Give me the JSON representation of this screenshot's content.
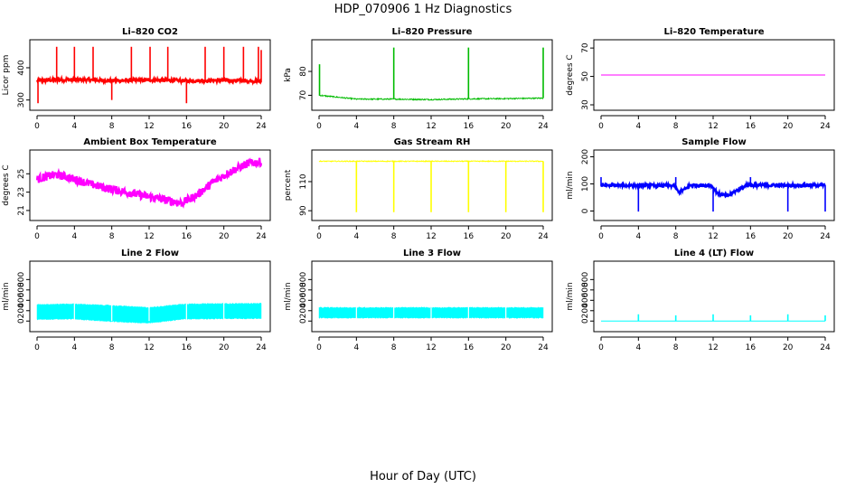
{
  "figure": {
    "title": "HDP_070906  1 Hz Diagnostics",
    "xlabel": "Hour of Day (UTC)"
  },
  "chart_data": [
    {
      "type": "line",
      "title": "Li–820 CO2",
      "ylabel": "Licor ppm",
      "color": "#ff0000",
      "xlim": [
        0,
        24
      ],
      "xticks": [
        0,
        4,
        8,
        12,
        16,
        20,
        24
      ],
      "ylim": [
        285,
        470
      ],
      "yticks": [
        300,
        400
      ],
      "base": [
        [
          0,
          360
        ],
        [
          2,
          362
        ],
        [
          4,
          363
        ],
        [
          6,
          362
        ],
        [
          8,
          360
        ],
        [
          10,
          361
        ],
        [
          12,
          362
        ],
        [
          14,
          361
        ],
        [
          16,
          360
        ],
        [
          18,
          360
        ],
        [
          20,
          361
        ],
        [
          22,
          360
        ],
        [
          24,
          358
        ]
      ],
      "noise": 5,
      "spikes": [
        {
          "x": 0.1,
          "y": 290
        },
        {
          "x": 2.1,
          "y": 465
        },
        {
          "x": 4,
          "y": 465
        },
        {
          "x": 6,
          "y": 465
        },
        {
          "x": 8,
          "y": 300
        },
        {
          "x": 10.1,
          "y": 465
        },
        {
          "x": 12.1,
          "y": 465
        },
        {
          "x": 14,
          "y": 465
        },
        {
          "x": 16,
          "y": 290
        },
        {
          "x": 18,
          "y": 465
        },
        {
          "x": 20,
          "y": 465
        },
        {
          "x": 22.1,
          "y": 465
        },
        {
          "x": 23.7,
          "y": 465
        },
        {
          "x": 24,
          "y": 455
        }
      ]
    },
    {
      "type": "line",
      "title": "Li–820 Pressure",
      "ylabel": "kPa",
      "color": "#00bb00",
      "xlim": [
        0,
        24
      ],
      "xticks": [
        0,
        4,
        8,
        12,
        16,
        20,
        24
      ],
      "ylim": [
        66,
        91
      ],
      "yticks": [
        70,
        80
      ],
      "base": [
        [
          0,
          70
        ],
        [
          4,
          68.4
        ],
        [
          8,
          68.4
        ],
        [
          12,
          68.2
        ],
        [
          16,
          68.5
        ],
        [
          20,
          68.6
        ],
        [
          24,
          68.8
        ]
      ],
      "noise": 0.25,
      "spikes": [
        {
          "x": 0.05,
          "y": 83
        },
        {
          "x": 8,
          "y": 90
        },
        {
          "x": 16,
          "y": 90
        },
        {
          "x": 24,
          "y": 90
        }
      ]
    },
    {
      "type": "line",
      "title": "Li–820 Temperature",
      "ylabel": "degrees C",
      "color": "#ff00ff",
      "xlim": [
        0,
        24
      ],
      "xticks": [
        0,
        4,
        8,
        12,
        16,
        20,
        24
      ],
      "ylim": [
        30,
        72
      ],
      "yticks": [
        30,
        50,
        70
      ],
      "base": [
        [
          0,
          51
        ],
        [
          24,
          51
        ]
      ],
      "noise": 0,
      "spikes": []
    },
    {
      "type": "line",
      "title": "Ambient Box Temperature",
      "ylabel": "degrees C",
      "color": "#ff00ff",
      "xlim": [
        0,
        24
      ],
      "xticks": [
        0,
        4,
        8,
        12,
        16,
        20,
        24
      ],
      "ylim": [
        20.5,
        27
      ],
      "yticks": [
        21,
        23,
        25
      ],
      "base": [
        [
          0,
          24.4
        ],
        [
          1,
          24.7
        ],
        [
          2,
          24.9
        ],
        [
          3,
          24.7
        ],
        [
          4,
          24.4
        ],
        [
          6,
          23.8
        ],
        [
          8,
          23.3
        ],
        [
          10,
          22.9
        ],
        [
          12,
          22.5
        ],
        [
          14,
          22.1
        ],
        [
          15.5,
          21.8
        ],
        [
          17,
          22.6
        ],
        [
          19,
          24.2
        ],
        [
          21,
          25.4
        ],
        [
          22.5,
          26.1
        ],
        [
          24,
          26.3
        ]
      ],
      "noise": 0.45,
      "spikes": []
    },
    {
      "type": "line",
      "title": "Gas Stream RH",
      "ylabel": "percent",
      "color": "#ffff00",
      "xlim": [
        0,
        24
      ],
      "xticks": [
        0,
        4,
        8,
        12,
        16,
        20,
        24
      ],
      "ylim": [
        87,
        128
      ],
      "yticks": [
        90,
        110
      ],
      "base": [
        [
          0,
          124
        ],
        [
          24,
          124
        ]
      ],
      "noise": 0.3,
      "spikes": [
        {
          "x": 4,
          "y": 89
        },
        {
          "x": 8,
          "y": 89
        },
        {
          "x": 12,
          "y": 89
        },
        {
          "x": 16,
          "y": 89
        },
        {
          "x": 20,
          "y": 89
        },
        {
          "x": 24,
          "y": 89
        }
      ]
    },
    {
      "type": "line",
      "title": "Sample Flow",
      "ylabel": "ml/min",
      "color": "#0000ff",
      "xlim": [
        0,
        24
      ],
      "xticks": [
        0,
        4,
        8,
        12,
        16,
        20,
        24
      ],
      "ylim": [
        -15,
        205
      ],
      "yticks": [
        0,
        100,
        200
      ],
      "base": [
        [
          0,
          95
        ],
        [
          7.8,
          93
        ],
        [
          8.3,
          70
        ],
        [
          9,
          80
        ],
        [
          9.5,
          95
        ],
        [
          11.8,
          95
        ],
        [
          12.5,
          65
        ],
        [
          13.5,
          55
        ],
        [
          14.5,
          75
        ],
        [
          15.5,
          95
        ],
        [
          24,
          95
        ]
      ],
      "noise": 6,
      "spikes": [
        {
          "x": 0,
          "y": 125
        },
        {
          "x": 4,
          "y": -2
        },
        {
          "x": 8,
          "y": 125
        },
        {
          "x": 12,
          "y": -2
        },
        {
          "x": 16,
          "y": 125
        },
        {
          "x": 20,
          "y": -2
        },
        {
          "x": 24,
          "y": -2
        }
      ]
    },
    {
      "type": "line",
      "title": "Line 2 Flow",
      "ylabel": "ml/min",
      "color": "#00ffff",
      "xlim": [
        0,
        24
      ],
      "xticks": [
        0,
        4,
        8,
        12,
        16,
        20,
        24
      ],
      "ylim": [
        -100,
        1050
      ],
      "yticks": [
        0,
        200,
        400,
        600,
        800
      ],
      "band": [
        [
          0,
          30,
          320
        ],
        [
          3.8,
          40,
          330
        ],
        [
          8,
          -10,
          300
        ],
        [
          12,
          -40,
          260
        ],
        [
          15.8,
          40,
          330
        ],
        [
          24,
          50,
          340
        ]
      ],
      "noise": 0,
      "spikes": []
    },
    {
      "type": "line",
      "title": "Line 3 Flow",
      "ylabel": "ml/min",
      "color": "#00ffff",
      "xlim": [
        0,
        24
      ],
      "xticks": [
        0,
        4,
        8,
        12,
        16,
        20,
        24
      ],
      "ylim": [
        -100,
        1050
      ],
      "yticks": [
        0,
        200,
        400,
        600,
        800
      ],
      "band": [
        [
          0,
          60,
          260
        ],
        [
          24,
          60,
          260
        ]
      ],
      "noise": 0,
      "spikes": []
    },
    {
      "type": "line",
      "title": "Line 4 (LT) Flow",
      "ylabel": "ml/min",
      "color": "#00ffff",
      "xlim": [
        0,
        24
      ],
      "xticks": [
        0,
        4,
        8,
        12,
        16,
        20,
        24
      ],
      "ylim": [
        -100,
        1050
      ],
      "yticks": [
        0,
        200,
        400,
        600,
        800
      ],
      "base": [
        [
          0,
          0
        ],
        [
          24,
          0
        ]
      ],
      "noise": 0,
      "spikes": [
        {
          "x": 4,
          "y": 130
        },
        {
          "x": 8,
          "y": 110
        },
        {
          "x": 12,
          "y": 130
        },
        {
          "x": 16,
          "y": 110
        },
        {
          "x": 20,
          "y": 130
        },
        {
          "x": 24,
          "y": 110
        }
      ]
    }
  ]
}
